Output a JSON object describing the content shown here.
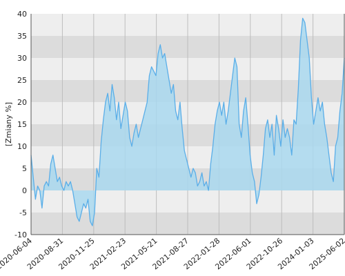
{
  "chart_data": {
    "type": "area",
    "title": "",
    "xlabel": "",
    "ylabel": "[Zmiany %]",
    "ylim": [
      -10,
      40
    ],
    "yticks": [
      -10,
      -5,
      0,
      5,
      10,
      15,
      20,
      25,
      30,
      35,
      40
    ],
    "x_tick_labels": [
      "2020-06-04",
      "2020-08-31",
      "2020-11-25",
      "2021-02-23",
      "2021-05-21",
      "2021-08-27",
      "2022-01-28",
      "2022-06-01",
      "2022-10-26",
      "2024-01-03",
      "2025-06-02"
    ],
    "grid": true,
    "colors": {
      "line": "#5aaee8",
      "fill": "#a9d8ee",
      "band_dark": "#dcdcdc",
      "band_light": "#eeeeee",
      "vgrid": "#bdbdbd",
      "axis": "#555555"
    },
    "series": [
      {
        "values": [
          8,
          3,
          -2,
          1,
          0,
          -4,
          1,
          2,
          1,
          6,
          8,
          5,
          2,
          3,
          1,
          0,
          2,
          1,
          2,
          0,
          -3,
          -6,
          -7,
          -5,
          -3,
          -4,
          -2,
          -7,
          -8,
          -5,
          5,
          3,
          11,
          16,
          20,
          22,
          18,
          24,
          21,
          16,
          20,
          14,
          17,
          20,
          18,
          12,
          10,
          13,
          15,
          12,
          14,
          16,
          18,
          20,
          26,
          28,
          27,
          26,
          31,
          33,
          30,
          31,
          28,
          25,
          22,
          24,
          18,
          16,
          20,
          14,
          9,
          7,
          5,
          3,
          5,
          4,
          1,
          2,
          4,
          1,
          2,
          0,
          6,
          10,
          15,
          18,
          20,
          17,
          20,
          15,
          18,
          22,
          26,
          30,
          28,
          15,
          12,
          18,
          21,
          15,
          8,
          4,
          2,
          -3,
          -1,
          3,
          8,
          14,
          16,
          12,
          15,
          8,
          17,
          14,
          10,
          16,
          12,
          14,
          12,
          8,
          16,
          15,
          23,
          34,
          39,
          38,
          34,
          30,
          21,
          15,
          18,
          21,
          18,
          20,
          15,
          12,
          8,
          4,
          2,
          10,
          12,
          18,
          22,
          30
        ]
      }
    ]
  }
}
